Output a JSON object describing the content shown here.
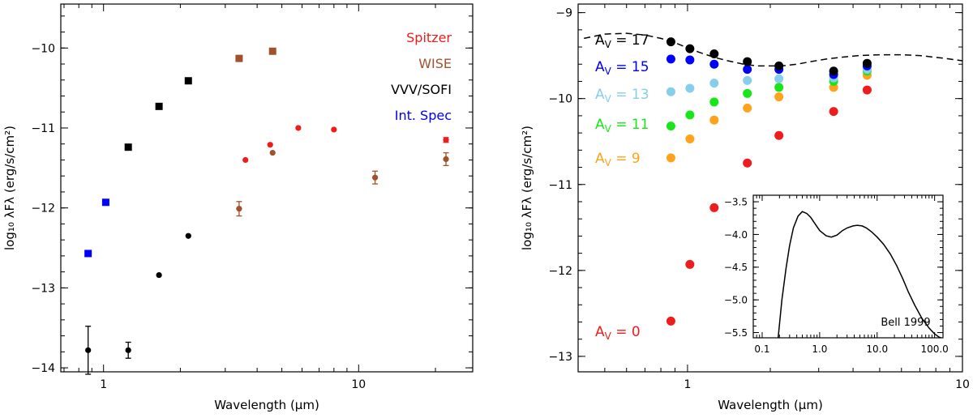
{
  "chart_data": [
    {
      "type": "scatter",
      "panel": "left",
      "xscale": "log",
      "xlim": [
        0.68,
        28
      ],
      "ylim": [
        -14.05,
        -9.45
      ],
      "xticks": [
        {
          "v": 1,
          "label": "1"
        },
        {
          "v": 10,
          "label": "10"
        }
      ],
      "yticks": [
        {
          "v": -10,
          "label": "−10"
        },
        {
          "v": -11,
          "label": "−11"
        },
        {
          "v": -12,
          "label": "−12"
        },
        {
          "v": -13,
          "label": "−13"
        },
        {
          "v": -14,
          "label": "−14"
        }
      ],
      "xlabel": "Wavelength (μm)",
      "ylabel": "log₁₀ λFλ (erg/s/cm²)",
      "legend": [
        {
          "label": "Spitzer",
          "color": "#ee1c1c"
        },
        {
          "label": "WISE",
          "color": "#a0522d"
        },
        {
          "label": "VVV/SOFI",
          "color": "#000000"
        },
        {
          "label": "Int. Spec",
          "color": "#0000ff"
        }
      ],
      "series": [
        {
          "name": "VVV/SOFI squares",
          "marker": "square",
          "color": "#000000",
          "points": [
            {
              "x": 1.25,
              "y": -11.24
            },
            {
              "x": 1.65,
              "y": -10.73
            },
            {
              "x": 2.15,
              "y": -10.41
            }
          ]
        },
        {
          "name": "Int. Spec squares",
          "marker": "square",
          "color": "#0000ff",
          "points": [
            {
              "x": 0.87,
              "y": -12.57
            },
            {
              "x": 1.02,
              "y": -11.93
            }
          ]
        },
        {
          "name": "WISE squares",
          "marker": "square",
          "color": "#a0522d",
          "points": [
            {
              "x": 3.4,
              "y": -10.13
            },
            {
              "x": 4.6,
              "y": -10.04
            }
          ]
        },
        {
          "name": "Spitzer points",
          "marker": "circle",
          "color": "#ee1c1c",
          "points": [
            {
              "x": 3.6,
              "y": -11.4
            },
            {
              "x": 4.5,
              "y": -11.21
            },
            {
              "x": 5.8,
              "y": -11.0
            },
            {
              "x": 8.0,
              "y": -11.02
            },
            {
              "x": 22.0,
              "y": -11.15,
              "err": 0.03
            }
          ]
        },
        {
          "name": "WISE points",
          "marker": "circle",
          "color": "#a0522d",
          "points": [
            {
              "x": 3.4,
              "y": -12.01,
              "err": 0.09
            },
            {
              "x": 4.6,
              "y": -11.31
            },
            {
              "x": 11.6,
              "y": -11.62,
              "err": 0.08
            },
            {
              "x": 22.0,
              "y": -11.39,
              "err": 0.08
            }
          ]
        },
        {
          "name": "VVV/SOFI points",
          "marker": "circle",
          "color": "#000000",
          "points": [
            {
              "x": 0.87,
              "y": -13.78,
              "err": 0.3
            },
            {
              "x": 1.25,
              "y": -13.78,
              "err": 0.1
            },
            {
              "x": 1.65,
              "y": -12.84
            },
            {
              "x": 2.15,
              "y": -12.35
            }
          ]
        }
      ]
    },
    {
      "type": "scatter",
      "panel": "right",
      "xscale": "log",
      "xlim": [
        0.4,
        10
      ],
      "ylim": [
        -13.18,
        -8.9
      ],
      "xticks": [
        {
          "v": 1,
          "label": "1"
        },
        {
          "v": 10,
          "label": "10"
        }
      ],
      "yticks": [
        {
          "v": -9,
          "label": "−9"
        },
        {
          "v": -10,
          "label": "−10"
        },
        {
          "v": -11,
          "label": "−11"
        },
        {
          "v": -12,
          "label": "−12"
        },
        {
          "v": -13,
          "label": "−13"
        }
      ],
      "xlabel": "Wavelength (μm)",
      "ylabel": "log₁₀ λFλ (erg/s/cm²)",
      "x": [
        0.87,
        1.02,
        1.25,
        1.65,
        2.15,
        3.4,
        4.5
      ],
      "series": [
        {
          "name": "A_V = 0",
          "label": "A_V = 0",
          "color": "#ee1c1c",
          "values": [
            -12.59,
            -11.93,
            -11.27,
            -10.75,
            -10.43,
            -10.15,
            -9.9
          ]
        },
        {
          "name": "A_V = 9",
          "label": "A_V = 9",
          "color": "#ffa21c",
          "values": [
            -10.69,
            -10.47,
            -10.25,
            -10.11,
            -9.98,
            -9.87,
            -9.73
          ]
        },
        {
          "name": "A_V = 11",
          "label": "A_V = 11",
          "color": "#19e619",
          "values": [
            -10.32,
            -10.19,
            -10.04,
            -9.94,
            -9.87,
            -9.8,
            -9.68
          ]
        },
        {
          "name": "A_V = 13",
          "label": "A_V = 13",
          "color": "#87ceeb",
          "values": [
            -9.92,
            -9.88,
            -9.82,
            -9.79,
            -9.77,
            -9.76,
            -9.66
          ]
        },
        {
          "name": "A_V = 15",
          "label": "A_V = 15",
          "color": "#0000ff",
          "values": [
            -9.54,
            -9.55,
            -9.6,
            -9.66,
            -9.66,
            -9.72,
            -9.62
          ]
        },
        {
          "name": "A_V = 17",
          "label": "A_V = 17",
          "color": "#000000",
          "values": [
            -9.34,
            -9.42,
            -9.48,
            -9.57,
            -9.62,
            -9.68,
            -9.59
          ]
        }
      ],
      "model_curve": {
        "style": "dashed",
        "x": [
          0.42,
          0.5,
          0.6,
          0.7,
          0.8,
          0.9,
          1.0,
          1.1,
          1.25,
          1.4,
          1.6,
          1.8,
          2.0,
          2.2,
          2.5,
          2.8,
          3.2,
          3.6,
          4.2,
          5.0,
          6.0,
          7.0,
          8.5,
          10.0
        ],
        "y": [
          -9.3,
          -9.25,
          -9.24,
          -9.26,
          -9.3,
          -9.35,
          -9.41,
          -9.46,
          -9.52,
          -9.56,
          -9.6,
          -9.62,
          -9.62,
          -9.62,
          -9.6,
          -9.57,
          -9.54,
          -9.52,
          -9.5,
          -9.49,
          -9.49,
          -9.5,
          -9.53,
          -9.56
        ]
      },
      "inset": {
        "type": "line",
        "title": "Bell 1999",
        "xscale": "log",
        "xlim": [
          0.07,
          140
        ],
        "ylim": [
          -5.58,
          -3.4
        ],
        "xticks": [
          {
            "v": 0.1,
            "label": "0.1"
          },
          {
            "v": 1,
            "label": "1.0"
          },
          {
            "v": 10,
            "label": "10.0"
          },
          {
            "v": 100,
            "label": "100.0"
          }
        ],
        "yticks": [
          {
            "v": -3.5,
            "label": "−3.5"
          },
          {
            "v": -4.0,
            "label": "−4.0"
          },
          {
            "v": -4.5,
            "label": "−4.5"
          },
          {
            "v": -5.0,
            "label": "−5.0"
          },
          {
            "v": -5.5,
            "label": "−5.5"
          }
        ],
        "x": [
          0.19,
          0.22,
          0.26,
          0.3,
          0.35,
          0.42,
          0.5,
          0.6,
          0.7,
          0.85,
          1.0,
          1.3,
          1.6,
          2.0,
          2.5,
          3.0,
          3.8,
          4.5,
          5.5,
          6.5,
          8.0,
          10.0,
          13.0,
          17.0,
          22.0,
          28.0,
          35.0,
          45.0,
          60.0,
          80.0,
          100.0,
          120.0,
          130.0
        ],
        "y": [
          -5.58,
          -5.0,
          -4.52,
          -4.17,
          -3.9,
          -3.72,
          -3.65,
          -3.68,
          -3.74,
          -3.85,
          -3.94,
          -4.02,
          -4.04,
          -4.01,
          -3.94,
          -3.9,
          -3.87,
          -3.86,
          -3.87,
          -3.9,
          -3.96,
          -4.04,
          -4.15,
          -4.3,
          -4.48,
          -4.68,
          -4.88,
          -5.08,
          -5.28,
          -5.43,
          -5.52,
          -5.57,
          -5.58
        ]
      }
    }
  ]
}
